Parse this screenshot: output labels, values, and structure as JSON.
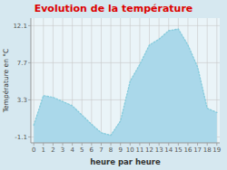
{
  "chart_data": {
    "type": "area",
    "title": "Evolution de la température",
    "x_label": "heure par heure",
    "y_label": "Température en °C",
    "x": [
      0,
      1,
      2,
      3,
      4,
      5,
      6,
      7,
      8,
      9,
      10,
      11,
      12,
      13,
      14,
      15,
      16,
      17,
      18,
      19
    ],
    "series": [
      {
        "type": "area",
        "color": "#aad8ea",
        "values": [
          0.3,
          3.8,
          3.6,
          3.1,
          2.6,
          1.5,
          0.4,
          -0.6,
          -0.9,
          0.8,
          5.5,
          7.5,
          9.8,
          10.5,
          11.5,
          11.7,
          9.8,
          7.2,
          2.3,
          1.8
        ]
      },
      {
        "type": "line",
        "color": "#88ccdd",
        "line_style": "dotted",
        "values": [
          0.3,
          3.8,
          3.6,
          3.1,
          2.6,
          1.5,
          0.4,
          -0.6,
          -0.9,
          0.8,
          5.5,
          7.5,
          9.8,
          10.5,
          11.5,
          11.7,
          9.8,
          7.2,
          2.3,
          1.8
        ]
      }
    ],
    "xlim": [
      -0.3,
      19.3
    ],
    "xticks": [
      0,
      1,
      2,
      3,
      4,
      5,
      6,
      7,
      8,
      9,
      10,
      11,
      12,
      13,
      14,
      15,
      16,
      17,
      18,
      19
    ],
    "ylim": [
      -1.8,
      13.0
    ],
    "yticks": [
      -1.1,
      3.3,
      7.7,
      12.1
    ],
    "grid": true
  }
}
